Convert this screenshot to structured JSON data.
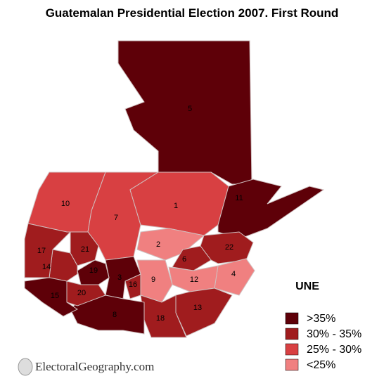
{
  "title": "Guatemalan Presidential Election 2007. First Round",
  "legend": {
    "title": "UNE",
    "items": [
      {
        "label": ">35%",
        "color": "#5e0008"
      },
      {
        "label": "30% - 35%",
        "color": "#a01c1e"
      },
      {
        "label": "25% - 30%",
        "color": "#d84042"
      },
      {
        "label": "<25%",
        "color": "#f08080"
      }
    ]
  },
  "regions": [
    {
      "label": "5",
      "color": "#5e0008"
    },
    {
      "label": "10",
      "color": "#d84042"
    },
    {
      "label": "7",
      "color": "#d84042"
    },
    {
      "label": "1",
      "color": "#d84042"
    },
    {
      "label": "11",
      "color": "#5e0008"
    },
    {
      "label": "2",
      "color": "#f08080"
    },
    {
      "label": "22",
      "color": "#a01c1e"
    },
    {
      "label": "6",
      "color": "#a01c1e"
    },
    {
      "label": "4",
      "color": "#f08080"
    },
    {
      "label": "12",
      "color": "#f08080"
    },
    {
      "label": "9",
      "color": "#f08080"
    },
    {
      "label": "13",
      "color": "#a01c1e"
    },
    {
      "label": "18",
      "color": "#a01c1e"
    },
    {
      "label": "16",
      "color": "#a01c1e"
    },
    {
      "label": "3",
      "color": "#5e0008"
    },
    {
      "label": "8",
      "color": "#5e0008"
    },
    {
      "label": "19",
      "color": "#5e0008"
    },
    {
      "label": "20",
      "color": "#a01c1e"
    },
    {
      "label": "21",
      "color": "#a01c1e"
    },
    {
      "label": "14",
      "color": "#a01c1e"
    },
    {
      "label": "17",
      "color": "#a01c1e"
    },
    {
      "label": "15",
      "color": "#5e0008"
    }
  ],
  "watermark": "ElectoralGeography.com"
}
